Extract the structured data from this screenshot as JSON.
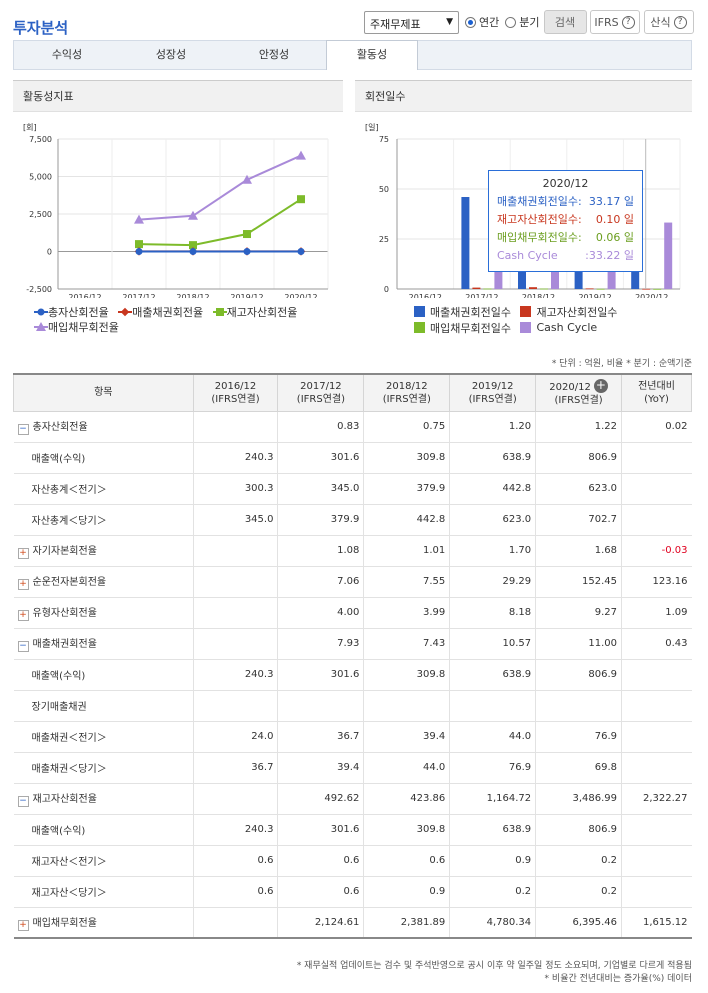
{
  "page_title": "투자분석",
  "controls": {
    "select_value": "주재무제표",
    "radio_annual": "연간",
    "radio_quarter": "분기",
    "search": "검색",
    "ifrs": "IFRS",
    "formula": "산식"
  },
  "tabs": [
    "수익성",
    "성장성",
    "안정성",
    "활동성"
  ],
  "chart1": {
    "panel": "활동성지표",
    "unit": "[회]",
    "yticks": [
      "7,500",
      "5,000",
      "2,500",
      "0",
      "-2,500"
    ],
    "xticks": [
      "2016/12",
      "2017/12",
      "2018/12",
      "2019/12",
      "2020/12"
    ],
    "legend": [
      "총자산회전율",
      "매출채권회전율",
      "재고자산회전율",
      "매입채무회전율"
    ]
  },
  "chart2": {
    "panel": "회전일수",
    "unit": "[일]",
    "yticks": [
      "75",
      "50",
      "25",
      "0"
    ],
    "xticks": [
      "2016/12",
      "2017/12",
      "2018/12",
      "2019/12",
      "2020/12"
    ],
    "legend": [
      "매출채권회전일수",
      "재고자산회전일수",
      "매입채무회전일수",
      "Cash Cycle"
    ],
    "tooltip": {
      "title": "2020/12",
      "rows": [
        [
          "매출채권회전일수:",
          "33.17 일"
        ],
        [
          "재고자산회전일수:",
          "0.10 일"
        ],
        [
          "매입채무회전일수:",
          "0.06 일"
        ],
        [
          "Cash Cycle",
          ":33.22 일"
        ]
      ]
    }
  },
  "chart_data": [
    {
      "type": "line",
      "title": "활동성지표",
      "ylabel": "[회]",
      "ylim": [
        -2500,
        7500
      ],
      "x": [
        "2016/12",
        "2017/12",
        "2018/12",
        "2019/12",
        "2020/12"
      ],
      "series": [
        {
          "name": "총자산회전율",
          "values": [
            null,
            0.83,
            0.75,
            1.2,
            1.22
          ],
          "color": "#2b61c4"
        },
        {
          "name": "매출채권회전율",
          "values": [
            null,
            7.93,
            7.43,
            10.57,
            11.0
          ],
          "color": "#c8371f"
        },
        {
          "name": "재고자산회전율",
          "values": [
            null,
            492.62,
            423.86,
            1164.72,
            3486.99
          ],
          "color": "#7dbb2a"
        },
        {
          "name": "매입채무회전율",
          "values": [
            null,
            2124.61,
            2381.89,
            4780.34,
            6395.46
          ],
          "color": "#a98ad9"
        }
      ]
    },
    {
      "type": "bar",
      "title": "회전일수",
      "ylabel": "[일]",
      "ylim": [
        0,
        75
      ],
      "categories": [
        "2016/12",
        "2017/12",
        "2018/12",
        "2019/12",
        "2020/12"
      ],
      "series": [
        {
          "name": "매출채권회전일수",
          "values": [
            null,
            46,
            49,
            34.5,
            33.17
          ],
          "color": "#2b61c4"
        },
        {
          "name": "재고자산회전일수",
          "values": [
            null,
            0.7,
            0.9,
            0.3,
            0.1
          ],
          "color": "#c8371f"
        },
        {
          "name": "매입채무회전일수",
          "values": [
            null,
            0.2,
            0.2,
            0.1,
            0.06
          ],
          "color": "#7dbb2a"
        },
        {
          "name": "Cash Cycle",
          "values": [
            null,
            46.5,
            49.7,
            34.7,
            33.22
          ],
          "color": "#a98ad9"
        }
      ]
    }
  ],
  "note_unit": "* 단위 : 억원, 비율   * 분기 : 순액기준",
  "table": {
    "headers": [
      "항목",
      "2016/12\n(IFRS연결)",
      "2017/12\n(IFRS연결)",
      "2018/12\n(IFRS연결)",
      "2019/12\n(IFRS연결)",
      "2020/12\n(IFRS연결)",
      "전년대비\n(YoY)"
    ],
    "rows": [
      {
        "label": "총자산회전율",
        "icon": "minus",
        "cells": [
          "",
          "0.83",
          "0.75",
          "1.20",
          "1.22",
          "0.02"
        ]
      },
      {
        "label": "매출액(수익)",
        "sub": true,
        "cells": [
          "240.3",
          "301.6",
          "309.8",
          "638.9",
          "806.9",
          ""
        ]
      },
      {
        "label": "자산총계＜전기＞",
        "sub": true,
        "cells": [
          "300.3",
          "345.0",
          "379.9",
          "442.8",
          "623.0",
          ""
        ]
      },
      {
        "label": "자산총계＜당기＞",
        "sub": true,
        "cells": [
          "345.0",
          "379.9",
          "442.8",
          "623.0",
          "702.7",
          ""
        ]
      },
      {
        "label": "자기자본회전율",
        "icon": "plus",
        "cells": [
          "",
          "1.08",
          "1.01",
          "1.70",
          "1.68",
          "-0.03"
        ]
      },
      {
        "label": "순운전자본회전율",
        "icon": "plus",
        "cells": [
          "",
          "7.06",
          "7.55",
          "29.29",
          "152.45",
          "123.16"
        ]
      },
      {
        "label": "유형자산회전율",
        "icon": "plus",
        "cells": [
          "",
          "4.00",
          "3.99",
          "8.18",
          "9.27",
          "1.09"
        ]
      },
      {
        "label": "매출채권회전율",
        "icon": "minus",
        "cells": [
          "",
          "7.93",
          "7.43",
          "10.57",
          "11.00",
          "0.43"
        ]
      },
      {
        "label": "매출액(수익)",
        "sub": true,
        "cells": [
          "240.3",
          "301.6",
          "309.8",
          "638.9",
          "806.9",
          ""
        ]
      },
      {
        "label": "장기매출채권",
        "sub": true,
        "cells": [
          "",
          "",
          "",
          "",
          "",
          ""
        ]
      },
      {
        "label": "매출채권＜전기＞",
        "sub": true,
        "cells": [
          "24.0",
          "36.7",
          "39.4",
          "44.0",
          "76.9",
          ""
        ]
      },
      {
        "label": "매출채권＜당기＞",
        "sub": true,
        "cells": [
          "36.7",
          "39.4",
          "44.0",
          "76.9",
          "69.8",
          ""
        ]
      },
      {
        "label": "재고자산회전율",
        "icon": "minus",
        "cells": [
          "",
          "492.62",
          "423.86",
          "1,164.72",
          "3,486.99",
          "2,322.27"
        ]
      },
      {
        "label": "매출액(수익)",
        "sub": true,
        "cells": [
          "240.3",
          "301.6",
          "309.8",
          "638.9",
          "806.9",
          ""
        ]
      },
      {
        "label": "재고자산＜전기＞",
        "sub": true,
        "cells": [
          "0.6",
          "0.6",
          "0.6",
          "0.9",
          "0.2",
          ""
        ]
      },
      {
        "label": "재고자산＜당기＞",
        "sub": true,
        "cells": [
          "0.6",
          "0.6",
          "0.9",
          "0.2",
          "0.2",
          ""
        ]
      },
      {
        "label": "매입채무회전율",
        "icon": "plus",
        "cells": [
          "",
          "2,124.61",
          "2,381.89",
          "4,780.34",
          "6,395.46",
          "1,615.12"
        ]
      }
    ]
  },
  "footnotes": [
    "* 재무실적 업데이트는 검수 및 주석반영으로 공시 이후 약 일주일 정도 소요되며, 기업별로 다르게 적용됨",
    "* 비율간 전년대비는 증가율(%) 데이터"
  ]
}
